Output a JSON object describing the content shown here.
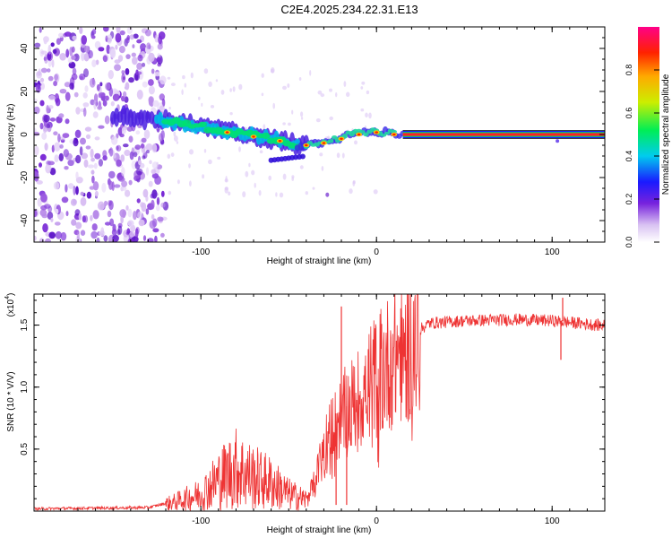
{
  "title": "C2E4.2025.234.22.31.E13",
  "chart_data": [
    {
      "type": "heatmap",
      "xlabel": "Height of straight line (km)",
      "ylabel": "Frequency (Hz)",
      "xlim": [
        -195,
        130
      ],
      "ylim": [
        -50,
        50
      ],
      "xticks": [
        -100,
        0,
        100
      ],
      "xtick_labels": [
        "-100",
        "0",
        "100"
      ],
      "yticks": [
        -40,
        -20,
        0,
        20,
        40
      ],
      "ytick_labels": [
        "-40",
        "-20",
        "0",
        "20",
        "40"
      ],
      "ridge": [
        {
          "x": -150,
          "y": 8
        },
        {
          "x": -125,
          "y": 7
        },
        {
          "x": -110,
          "y": 5
        },
        {
          "x": -95,
          "y": 3
        },
        {
          "x": -80,
          "y": 1
        },
        {
          "x": -65,
          "y": -1
        },
        {
          "x": -55,
          "y": -3
        },
        {
          "x": -45,
          "y": -5
        },
        {
          "x": -35,
          "y": -4
        },
        {
          "x": -25,
          "y": -2
        },
        {
          "x": -15,
          "y": 0
        },
        {
          "x": -5,
          "y": 1
        },
        {
          "x": 0,
          "y": 1
        },
        {
          "x": 20,
          "y": 0
        },
        {
          "x": 130,
          "y": 0
        }
      ]
    },
    {
      "type": "line",
      "xlabel": "Height of straight line (km)",
      "ylabel": "SNR (10 * V/V)",
      "multiplier": "(x10",
      "multiplier_exp": "4",
      "xlim": [
        -195,
        130
      ],
      "ylim": [
        0,
        1.75
      ],
      "xticks": [
        -100,
        0,
        100
      ],
      "xtick_labels": [
        "-100",
        "0",
        "100"
      ],
      "yticks": [
        0.5,
        1.0,
        1.5
      ],
      "ytick_labels": [
        "0.5",
        "1.0",
        "1.5"
      ],
      "color": "#ee3333",
      "envelope": [
        {
          "x": -195,
          "y": 0.02
        },
        {
          "x": -130,
          "y": 0.03
        },
        {
          "x": -115,
          "y": 0.08
        },
        {
          "x": -100,
          "y": 0.15
        },
        {
          "x": -90,
          "y": 0.28
        },
        {
          "x": -80,
          "y": 0.38
        },
        {
          "x": -70,
          "y": 0.3
        },
        {
          "x": -60,
          "y": 0.25
        },
        {
          "x": -50,
          "y": 0.15
        },
        {
          "x": -40,
          "y": 0.1
        },
        {
          "x": -35,
          "y": 0.25
        },
        {
          "x": -30,
          "y": 0.55
        },
        {
          "x": -20,
          "y": 0.8
        },
        {
          "x": -10,
          "y": 0.95
        },
        {
          "x": 0,
          "y": 1.15
        },
        {
          "x": 10,
          "y": 1.3
        },
        {
          "x": 20,
          "y": 1.42
        },
        {
          "x": 30,
          "y": 1.52
        },
        {
          "x": 50,
          "y": 1.54
        },
        {
          "x": 80,
          "y": 1.55
        },
        {
          "x": 100,
          "y": 1.54
        },
        {
          "x": 130,
          "y": 1.5
        }
      ],
      "spikes": [
        {
          "x": -20,
          "y": 1.65
        },
        {
          "x": -17,
          "y": 0.05
        },
        {
          "x": -23,
          "y": 0.05
        },
        {
          "x": 106,
          "y": 1.72
        },
        {
          "x": 105,
          "y": 1.22
        }
      ]
    }
  ],
  "colorbar": {
    "label": "Normalized spectral amplitude",
    "ticks": [
      0.0,
      0.2,
      0.4,
      0.6,
      0.8
    ],
    "tick_labels": [
      "0.0",
      "0.2",
      "0.4",
      "0.6",
      "0.8"
    ],
    "range": [
      0,
      1
    ]
  }
}
